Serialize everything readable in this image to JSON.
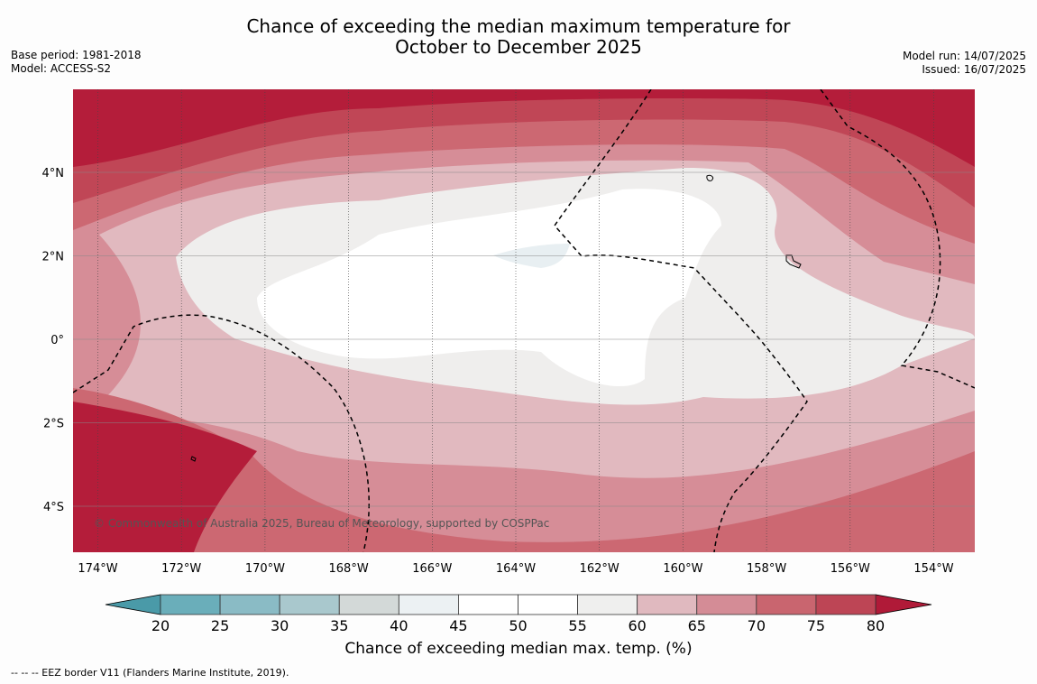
{
  "header": {
    "title_line1": "Chance of exceeding the median maximum temperature for",
    "title_line2": "October to December 2025",
    "base_period": "Base period: 1981-2018",
    "model": "Model: ACCESS-S2",
    "model_run": "Model run: 14/07/2025",
    "issued": "Issued: 16/07/2025"
  },
  "map": {
    "lon_ticks": [
      "174°W",
      "172°W",
      "170°W",
      "168°W",
      "166°W",
      "164°W",
      "162°W",
      "160°W",
      "158°W",
      "156°W",
      "154°W"
    ],
    "lat_ticks": [
      "4°N",
      "2°N",
      "0°",
      "2°S",
      "4°S"
    ],
    "copyright": "© Commonwealth of Australia 2025, Bureau of Meteorology, supported by COSPPac",
    "background_color": "#b41d3a"
  },
  "colorbar": {
    "ticks": [
      "20",
      "25",
      "30",
      "35",
      "40",
      "45",
      "50",
      "55",
      "60",
      "65",
      "70",
      "75",
      "80"
    ],
    "under_color": "#4a9aa8",
    "over_color": "#b01a38",
    "colors": [
      "#6aaeba",
      "#8abbc5",
      "#a9c8cd",
      "#d3d9d8",
      "#ecf1f3",
      "#ffffff",
      "#ffffff",
      "#efefee",
      "#e0b9bf",
      "#d48c96",
      "#c9656f",
      "#bd4555"
    ],
    "title": "Chance of exceeding median max. temp. (%)"
  },
  "footer": {
    "legend_text": "--  --  -- EEZ border V11 (Flanders Marine Institute, 2019)."
  }
}
